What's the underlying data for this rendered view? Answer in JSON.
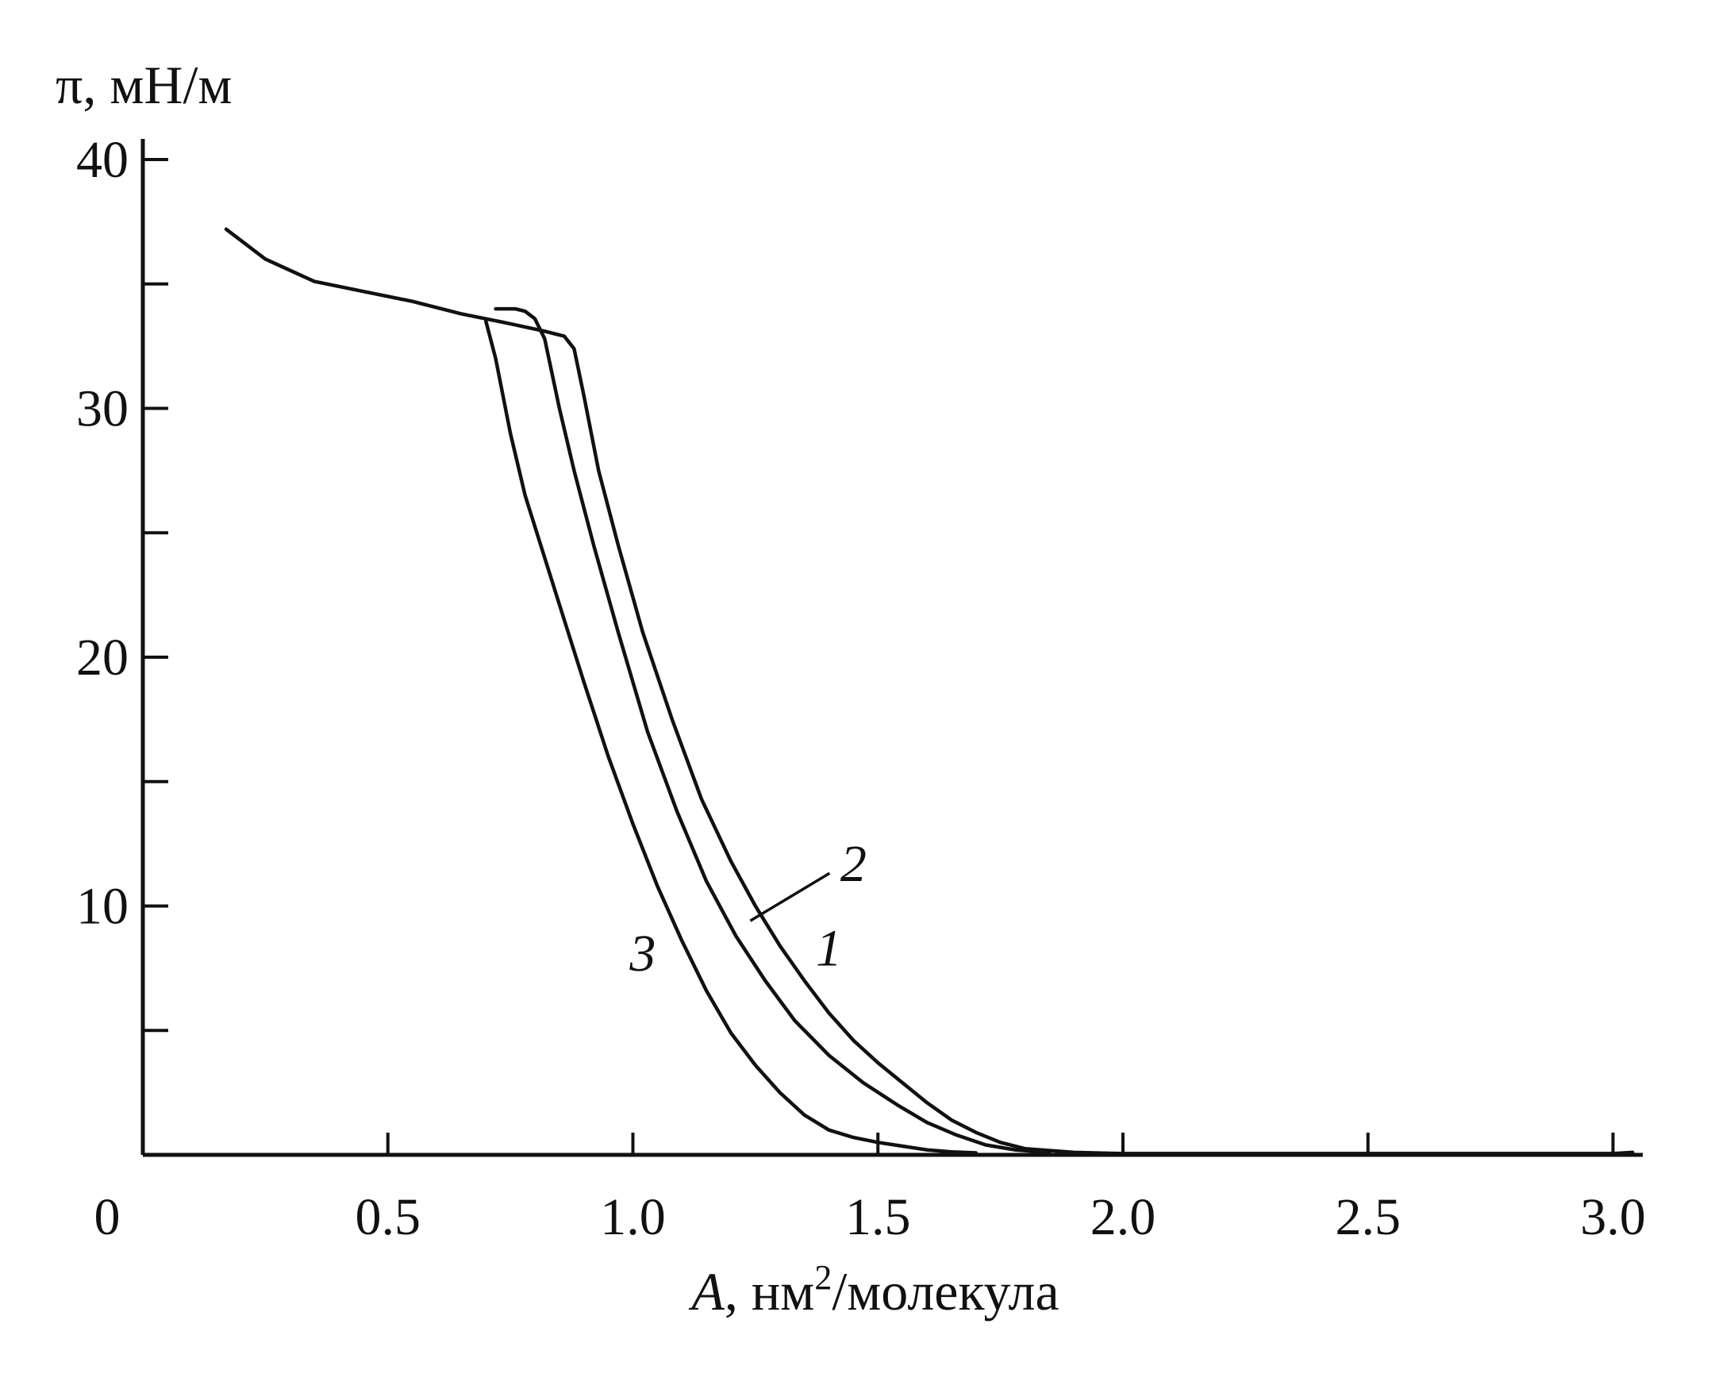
{
  "chart_data": {
    "type": "line",
    "xlabel_var": "A",
    "xlabel_rest": ", нм",
    "xlabel_sup": "2",
    "xlabel_unit": "/молекула",
    "ylabel": "π, мН/м",
    "xlim": [
      0,
      3.05
    ],
    "ylim": [
      0,
      40
    ],
    "x_ticks": [
      {
        "value": 0,
        "label": "0"
      },
      {
        "value": 0.5,
        "label": "0.5"
      },
      {
        "value": 1.0,
        "label": "1.0"
      },
      {
        "value": 1.5,
        "label": "1.5"
      },
      {
        "value": 2.0,
        "label": "2.0"
      },
      {
        "value": 2.5,
        "label": "2.5"
      },
      {
        "value": 3.0,
        "label": "3.0"
      }
    ],
    "y_ticks": [
      {
        "value": 5,
        "label": ""
      },
      {
        "value": 10,
        "label": "10"
      },
      {
        "value": 15,
        "label": ""
      },
      {
        "value": 20,
        "label": "20"
      },
      {
        "value": 25,
        "label": ""
      },
      {
        "value": 30,
        "label": "30"
      },
      {
        "value": 35,
        "label": ""
      },
      {
        "value": 40,
        "label": "40"
      }
    ],
    "series": [
      {
        "name": "1",
        "x": [
          0.17,
          0.25,
          0.35,
          0.45,
          0.55,
          0.65,
          0.75,
          0.82,
          0.86,
          0.88,
          0.9,
          0.93,
          0.97,
          1.02,
          1.08,
          1.14,
          1.2,
          1.25,
          1.3,
          1.35,
          1.4,
          1.45,
          1.5,
          1.55,
          1.6,
          1.65,
          1.7,
          1.75,
          1.8,
          1.9,
          2.0,
          2.5,
          3.0,
          3.04
        ],
        "y": [
          37.2,
          36.0,
          35.1,
          34.7,
          34.3,
          33.8,
          33.4,
          33.1,
          32.9,
          32.4,
          30.5,
          27.5,
          24.5,
          21.0,
          17.5,
          14.3,
          11.8,
          10.0,
          8.4,
          7.0,
          5.7,
          4.6,
          3.7,
          2.9,
          2.1,
          1.4,
          0.9,
          0.5,
          0.25,
          0.1,
          0.05,
          0.05,
          0.05,
          0.1
        ]
      },
      {
        "name": "2",
        "x": [
          0.72,
          0.76,
          0.78,
          0.8,
          0.82,
          0.85,
          0.88,
          0.92,
          0.97,
          1.03,
          1.09,
          1.15,
          1.21,
          1.27,
          1.33,
          1.4,
          1.47,
          1.54,
          1.6,
          1.66,
          1.72,
          1.78,
          1.85
        ],
        "y": [
          34.0,
          34.0,
          33.9,
          33.6,
          32.8,
          30.0,
          27.5,
          24.5,
          21.0,
          17.0,
          13.8,
          11.0,
          8.8,
          7.0,
          5.4,
          4.0,
          2.9,
          2.0,
          1.3,
          0.8,
          0.4,
          0.2,
          0.1
        ]
      },
      {
        "name": "3",
        "x": [
          0.7,
          0.72,
          0.75,
          0.78,
          0.82,
          0.86,
          0.9,
          0.95,
          1.0,
          1.05,
          1.1,
          1.15,
          1.2,
          1.25,
          1.3,
          1.35,
          1.4,
          1.45,
          1.5,
          1.55,
          1.6,
          1.65,
          1.7
        ],
        "y": [
          33.5,
          32.0,
          29.0,
          26.5,
          24.0,
          21.5,
          19.0,
          16.0,
          13.3,
          10.8,
          8.6,
          6.6,
          4.9,
          3.6,
          2.5,
          1.6,
          1.0,
          0.7,
          0.5,
          0.35,
          0.2,
          0.12,
          0.08
        ]
      }
    ],
    "curve_labels": [
      {
        "text": "1",
        "x": 1.4,
        "y": 7.6
      },
      {
        "text": "2",
        "x": 1.45,
        "y": 11.0
      },
      {
        "text": "3",
        "x": 1.02,
        "y": 7.4
      }
    ],
    "grid": false
  }
}
